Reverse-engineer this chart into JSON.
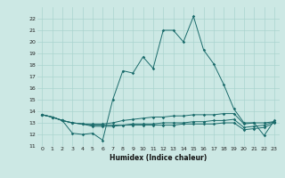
{
  "xlabel": "Humidex (Indice chaleur)",
  "bg_color": "#cce8e4",
  "grid_color": "#aad4cf",
  "line_color": "#1a6b6b",
  "xlim": [
    -0.5,
    23.5
  ],
  "ylim": [
    11,
    23
  ],
  "yticks": [
    11,
    12,
    13,
    14,
    15,
    16,
    17,
    18,
    19,
    20,
    21,
    22
  ],
  "xticks": [
    0,
    1,
    2,
    3,
    4,
    5,
    6,
    7,
    8,
    9,
    10,
    11,
    12,
    13,
    14,
    15,
    16,
    17,
    18,
    19,
    20,
    21,
    22,
    23
  ],
  "series": [
    [
      13.7,
      13.5,
      13.2,
      12.1,
      12.0,
      12.1,
      11.5,
      15.0,
      17.5,
      17.3,
      18.7,
      17.7,
      21.0,
      21.0,
      20.0,
      22.2,
      19.3,
      18.1,
      16.3,
      14.2,
      13.0,
      13.0,
      11.9,
      13.2
    ],
    [
      13.7,
      13.5,
      13.2,
      13.0,
      12.9,
      12.9,
      12.9,
      13.0,
      13.2,
      13.3,
      13.4,
      13.5,
      13.5,
      13.6,
      13.6,
      13.7,
      13.7,
      13.7,
      13.8,
      13.8,
      12.9,
      13.0,
      13.0,
      13.1
    ],
    [
      13.7,
      13.5,
      13.2,
      13.0,
      12.9,
      12.8,
      12.8,
      12.8,
      12.8,
      12.9,
      12.9,
      12.9,
      13.0,
      13.0,
      13.0,
      13.1,
      13.1,
      13.2,
      13.2,
      13.3,
      12.6,
      12.7,
      12.8,
      13.1
    ],
    [
      13.7,
      13.5,
      13.2,
      13.0,
      12.9,
      12.7,
      12.7,
      12.7,
      12.8,
      12.8,
      12.8,
      12.8,
      12.8,
      12.8,
      12.9,
      12.9,
      12.9,
      12.9,
      13.0,
      13.0,
      12.4,
      12.5,
      12.6,
      13.0
    ]
  ],
  "markers": [
    true,
    false,
    false,
    false
  ]
}
